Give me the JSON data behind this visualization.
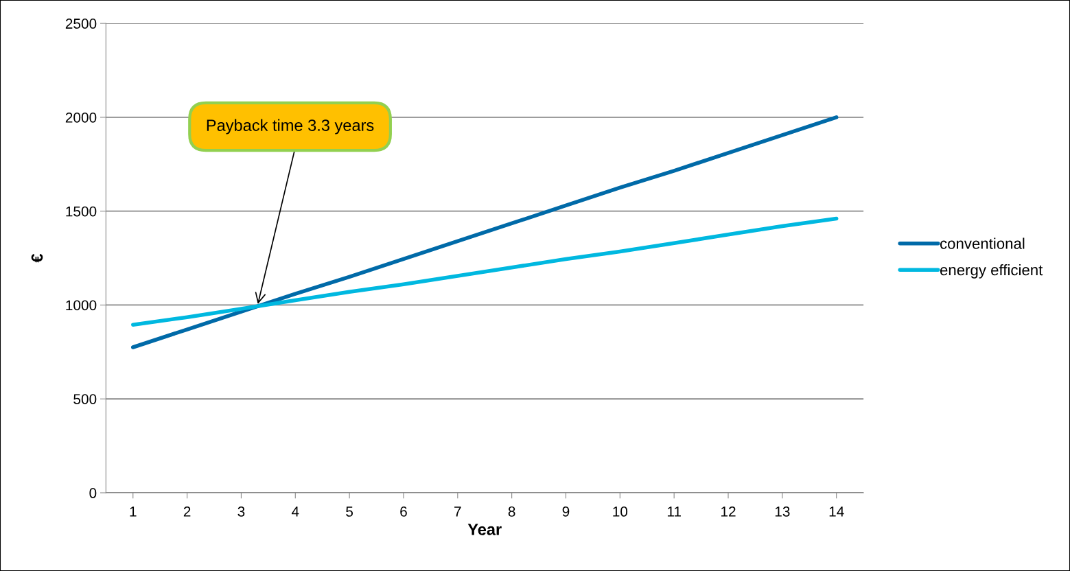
{
  "chart_data": {
    "type": "line",
    "xlabel": "Year",
    "ylabel": "€",
    "x": [
      1,
      2,
      3,
      4,
      5,
      6,
      7,
      8,
      9,
      10,
      11,
      12,
      13,
      14
    ],
    "xlim": [
      0.5,
      14.5
    ],
    "xticks": [
      1,
      2,
      3,
      4,
      5,
      6,
      7,
      8,
      9,
      10,
      11,
      12,
      13,
      14
    ],
    "ylim": [
      0,
      2500
    ],
    "yticks": [
      0,
      500,
      1000,
      1500,
      2000,
      2500
    ],
    "series": [
      {
        "name": "conventional",
        "color": "#006aa8",
        "values": [
          775,
          870,
          965,
          1060,
          1150,
          1245,
          1340,
          1435,
          1530,
          1625,
          1715,
          1810,
          1905,
          2000
        ]
      },
      {
        "name": "energy efficient",
        "color": "#00b8e0",
        "values": [
          895,
          935,
          980,
          1025,
          1070,
          1110,
          1155,
          1200,
          1245,
          1285,
          1330,
          1375,
          1420,
          1460
        ]
      }
    ],
    "annotations": [
      {
        "text": "Payback time 3.3 years",
        "x": 3.3,
        "y": 995
      }
    ],
    "grid": "y",
    "legend": "right",
    "marker": "none",
    "line_style": "solid"
  }
}
